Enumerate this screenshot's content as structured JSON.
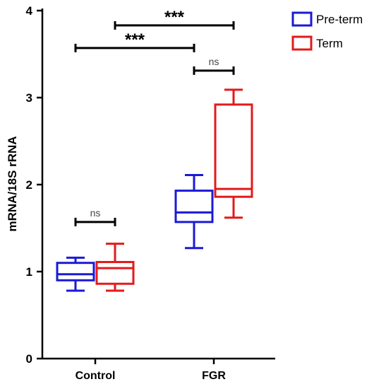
{
  "chart_data": {
    "type": "box",
    "ylabel": "mRNA/18S rRNA",
    "xlabel": "",
    "ylim": [
      0,
      4
    ],
    "yticks": [
      "0",
      "1",
      "2",
      "3",
      "4"
    ],
    "categories": [
      "Control",
      "FGR"
    ],
    "series": [
      {
        "name": "Pre-term",
        "color": "#1a1ad6",
        "boxes": [
          {
            "category": "Control",
            "min": 0.78,
            "q1": 0.9,
            "median": 0.97,
            "q3": 1.1,
            "max": 1.16
          },
          {
            "category": "FGR",
            "min": 1.27,
            "q1": 1.57,
            "median": 1.68,
            "q3": 1.93,
            "max": 2.11
          }
        ]
      },
      {
        "name": "Term",
        "color": "#e31a1a",
        "boxes": [
          {
            "category": "Control",
            "min": 0.78,
            "q1": 0.86,
            "median": 1.04,
            "q3": 1.11,
            "max": 1.32
          },
          {
            "category": "FGR",
            "min": 1.62,
            "q1": 1.86,
            "median": 1.95,
            "q3": 2.92,
            "max": 3.09
          }
        ]
      }
    ],
    "significance": [
      {
        "label": "ns",
        "from": "Control / Pre-term",
        "to": "Control / Term",
        "y": 1.57
      },
      {
        "label": "***",
        "from": "Control / Pre-term",
        "to": "FGR / Pre-term",
        "y": 3.57
      },
      {
        "label": "ns",
        "from": "FGR / Pre-term",
        "to": "FGR / Term",
        "y": 3.31
      },
      {
        "label": "***",
        "from": "Control / Term",
        "to": "FGR / Term",
        "y": 3.83
      }
    ],
    "legend_position": "top-right",
    "grid": false
  }
}
